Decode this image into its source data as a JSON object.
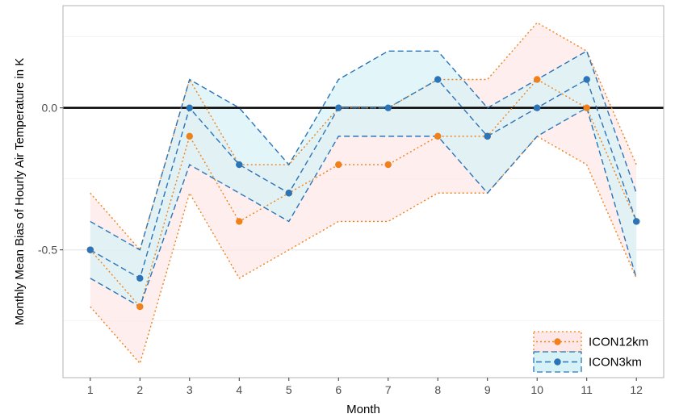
{
  "chart_data": {
    "type": "line",
    "title": "",
    "xlabel": "Month",
    "ylabel": "Monthly Mean Bias of Hourly Air Temperature in K",
    "x": [
      1,
      2,
      3,
      4,
      5,
      6,
      7,
      8,
      9,
      10,
      11,
      12
    ],
    "x_tick_labels": [
      "1",
      "2",
      "3",
      "4",
      "5",
      "6",
      "7",
      "8",
      "9",
      "10",
      "11",
      "12"
    ],
    "xlim": [
      0.45,
      12.55
    ],
    "ylim": [
      -0.95,
      0.36
    ],
    "y_ticks": [
      0.0,
      -0.5
    ],
    "y_tick_labels": [
      "0.0",
      "-0.5"
    ],
    "grid": true,
    "reference_line": 0.0,
    "legend_position": "bottom-right",
    "series": [
      {
        "name": "ICON12km",
        "color": "#f0811a",
        "fill": "#fde7e7",
        "line_style": "dotted",
        "values": [
          -0.5,
          -0.7,
          -0.1,
          -0.4,
          -0.3,
          -0.2,
          -0.2,
          -0.1,
          -0.1,
          0.1,
          0.0,
          -0.4
        ],
        "upper": [
          -0.3,
          -0.5,
          0.1,
          -0.2,
          -0.2,
          0.0,
          0.0,
          0.1,
          0.1,
          0.3,
          0.2,
          -0.2
        ],
        "lower": [
          -0.7,
          -0.9,
          -0.3,
          -0.6,
          -0.5,
          -0.4,
          -0.4,
          -0.3,
          -0.3,
          -0.1,
          -0.2,
          -0.6
        ]
      },
      {
        "name": "ICON3km",
        "color": "#2b74b8",
        "fill": "#d6f2f7",
        "line_style": "dashed",
        "values": [
          -0.5,
          -0.6,
          0.0,
          -0.2,
          -0.3,
          0.0,
          0.0,
          0.1,
          -0.1,
          0.0,
          0.1,
          -0.4
        ],
        "upper": [
          -0.4,
          -0.5,
          0.1,
          0.0,
          -0.2,
          0.1,
          0.2,
          0.2,
          0.0,
          0.1,
          0.2,
          -0.3
        ],
        "lower": [
          -0.6,
          -0.7,
          -0.2,
          -0.3,
          -0.4,
          -0.1,
          -0.1,
          -0.1,
          -0.3,
          -0.1,
          0.0,
          -0.6
        ]
      }
    ]
  }
}
